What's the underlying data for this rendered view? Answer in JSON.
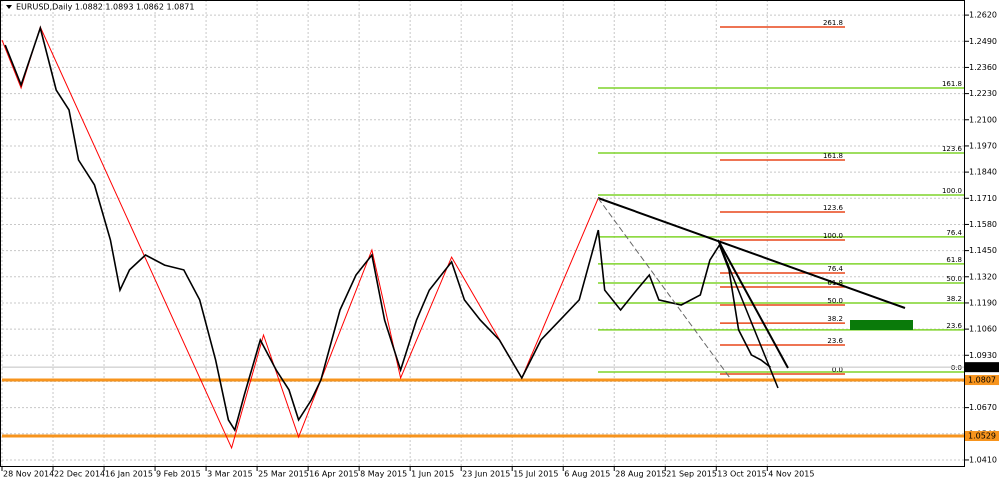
{
  "chart_data": {
    "type": "line",
    "title": "EURUSD,Daily  1.0882 1.0893 1.0862 1.0871",
    "xlim": [
      0,
      302
    ],
    "ylim": [
      1.0375,
      1.2695
    ],
    "grid": true,
    "xticks": [
      {
        "value": 0,
        "label": "28 Nov 2014"
      },
      {
        "value": 16,
        "label": "22 Dec 2014"
      },
      {
        "value": 32,
        "label": "16 Jan 2015"
      },
      {
        "value": 48,
        "label": "9 Feb 2015"
      },
      {
        "value": 64,
        "label": "3 Mar 2015"
      },
      {
        "value": 80,
        "label": "25 Mar 2015"
      },
      {
        "value": 96,
        "label": "16 Apr 2015"
      },
      {
        "value": 112,
        "label": "8 May 2015"
      },
      {
        "value": 128,
        "label": "1 Jun 2015"
      },
      {
        "value": 144,
        "label": "23 Jun 2015"
      },
      {
        "value": 160,
        "label": "15 Jul 2015"
      },
      {
        "value": 176,
        "label": "6 Aug 2015"
      },
      {
        "value": 192,
        "label": "28 Aug 2015"
      },
      {
        "value": 208,
        "label": "21 Sep 2015"
      },
      {
        "value": 224,
        "label": "13 Oct 2015"
      },
      {
        "value": 240,
        "label": "4 Nov 2015"
      }
    ],
    "yticks": [
      {
        "value": 1.262,
        "label": "1.2620"
      },
      {
        "value": 1.249,
        "label": "1.2490"
      },
      {
        "value": 1.236,
        "label": "1.2360"
      },
      {
        "value": 1.223,
        "label": "1.2230"
      },
      {
        "value": 1.21,
        "label": "1.2100"
      },
      {
        "value": 1.197,
        "label": "1.1970"
      },
      {
        "value": 1.184,
        "label": "1.1840"
      },
      {
        "value": 1.171,
        "label": "1.1710"
      },
      {
        "value": 1.158,
        "label": "1.1580"
      },
      {
        "value": 1.145,
        "label": "1.1450"
      },
      {
        "value": 1.132,
        "label": "1.1320"
      },
      {
        "value": 1.119,
        "label": "1.1190"
      },
      {
        "value": 1.106,
        "label": "1.1060"
      },
      {
        "value": 1.093,
        "label": "1.0930"
      },
      {
        "value": 1.08,
        "label": "1.0800"
      },
      {
        "value": 1.067,
        "label": "1.0670"
      },
      {
        "value": 1.054,
        "label": "1.0540"
      },
      {
        "value": 1.041,
        "label": "1.0410"
      }
    ],
    "x": [
      1,
      6,
      12,
      17,
      21,
      24,
      29,
      34,
      37,
      40,
      45,
      51,
      57,
      62,
      67,
      71,
      73,
      76,
      81,
      86,
      90,
      93,
      97,
      100,
      106,
      111,
      116,
      120,
      125,
      130,
      134,
      141,
      145,
      150,
      156,
      163,
      169,
      175,
      181,
      187,
      189,
      194,
      199,
      203,
      206,
      213,
      219,
      222,
      225,
      228,
      231,
      235,
      238,
      241
    ],
    "values": [
      1.2471,
      1.2273,
      1.2556,
      1.2248,
      1.2149,
      1.19,
      1.1776,
      1.1503,
      1.1254,
      1.1354,
      1.1428,
      1.1378,
      1.1354,
      1.1205,
      1.0907,
      1.0609,
      1.0559,
      1.0733,
      1.1006,
      1.0857,
      1.0758,
      1.0609,
      1.0708,
      1.0807,
      1.1155,
      1.1329,
      1.1428,
      1.1105,
      1.0857,
      1.1105,
      1.1254,
      1.1394,
      1.1205,
      1.1105,
      1.1006,
      1.0817,
      1.1006,
      1.1105,
      1.1205,
      1.1552,
      1.1254,
      1.1155,
      1.1254,
      1.1329,
      1.1205,
      1.118,
      1.123,
      1.1403,
      1.1478,
      1.1354,
      1.1056,
      1.0932,
      1.0907,
      1.0871
    ],
    "color": "#000000",
    "zigzag": {
      "x": [
        0,
        6,
        12,
        72,
        82,
        93,
        116,
        125,
        141,
        163,
        187
      ],
      "values": [
        1.2496,
        1.2258,
        1.2561,
        1.047,
        1.1031,
        1.0524,
        1.1453,
        1.0817,
        1.1418,
        1.0817,
        1.1711
      ],
      "color": "#ff0000"
    },
    "green_levels": {
      "color": "#7fd42a",
      "levels": [
        {
          "price": 1.2258,
          "label": "161.8"
        },
        {
          "price": 1.1935,
          "label": "123.6"
        },
        {
          "price": 1.1726,
          "label": "100.0"
        },
        {
          "price": 1.1518,
          "label": "76.4"
        },
        {
          "price": 1.1384,
          "label": "61.8"
        },
        {
          "price": 1.1289,
          "label": "50.0"
        },
        {
          "price": 1.119,
          "label": "38.2"
        },
        {
          "price": 1.1056,
          "label": "23.6"
        },
        {
          "price": 1.0847,
          "label": "0.0"
        }
      ]
    },
    "red_levels": {
      "color": "#e8471a",
      "levels": [
        {
          "price": 1.2561,
          "label": "261.8"
        },
        {
          "price": 1.19,
          "label": "161.8"
        },
        {
          "price": 1.1642,
          "label": "123.6"
        },
        {
          "price": 1.1503,
          "label": "100.0"
        },
        {
          "price": 1.1339,
          "label": "76.4"
        },
        {
          "price": 1.1269,
          "label": "61.8"
        },
        {
          "price": 1.118,
          "label": "50.0"
        },
        {
          "price": 1.109,
          "label": "38.2"
        },
        {
          "price": 1.0981,
          "label": "23.6"
        },
        {
          "price": 1.0837,
          "label": "0.0"
        }
      ]
    },
    "hlines": [
      {
        "value": 1.0807,
        "label": "1.0807",
        "color": "#f7941d"
      },
      {
        "value": 1.0529,
        "label": "1.0529",
        "color": "#f7941d"
      }
    ],
    "current_price": {
      "value": 1.0871,
      "label": "1.0871",
      "color": "#c0c0c0"
    }
  }
}
